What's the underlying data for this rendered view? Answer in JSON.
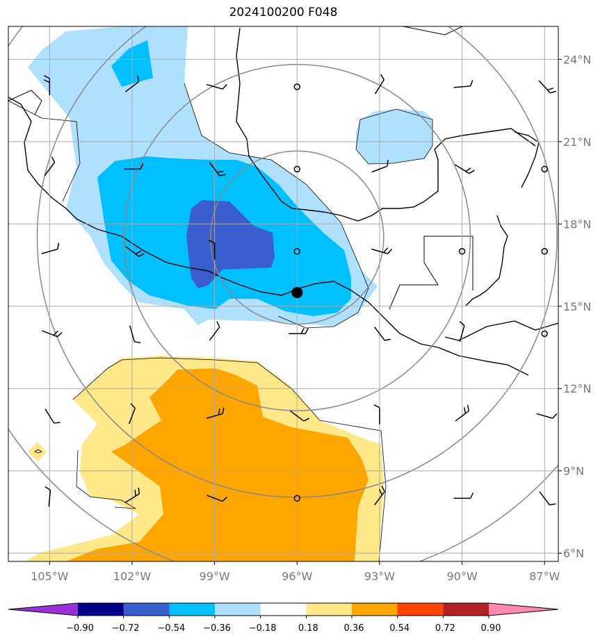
{
  "title": "2024100200 F048",
  "map": {
    "lon_range": [
      -106.5,
      -86.5
    ],
    "lat_range": [
      5.7,
      25.2
    ],
    "lon_ticks": [
      {
        "value": -105,
        "label": "105°W"
      },
      {
        "value": -102,
        "label": "102°W"
      },
      {
        "value": -99,
        "label": "99°W"
      },
      {
        "value": -96,
        "label": "96°W"
      },
      {
        "value": -93,
        "label": "93°W"
      },
      {
        "value": -90,
        "label": "90°W"
      },
      {
        "value": -87,
        "label": "87°W"
      }
    ],
    "lat_ticks": [
      {
        "value": 6,
        "label": "6°N"
      },
      {
        "value": 9,
        "label": "9°N"
      },
      {
        "value": 12,
        "label": "12°N"
      },
      {
        "value": 15,
        "label": "15°N"
      },
      {
        "value": 18,
        "label": "18°N"
      },
      {
        "value": 21,
        "label": "21°N"
      },
      {
        "value": 24,
        "label": "24°N"
      }
    ],
    "storm_center": {
      "lon": -96.0,
      "lat": 15.5
    },
    "range_ring_radii_deg": [
      3,
      6,
      9,
      12
    ]
  },
  "colorbar": {
    "levels": [
      "−0.90",
      "−0.72",
      "−0.54",
      "−0.36",
      "−0.18",
      "0.18",
      "0.36",
      "0.54",
      "0.72",
      "0.90"
    ],
    "colors": [
      "#9b30d8",
      "#00008b",
      "#3a5fcd",
      "#00bfff",
      "#b0e0ff",
      "#ffffff",
      "#ffe88a",
      "#ffa500",
      "#ff4500",
      "#b22222",
      "#ff88b0"
    ]
  }
}
